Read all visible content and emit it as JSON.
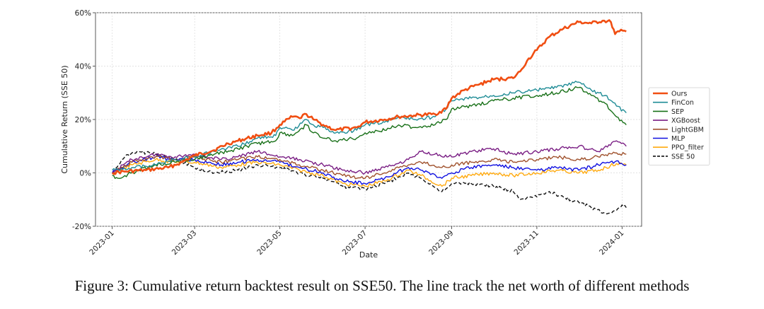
{
  "caption": "Figure 3: Cumulative return backtest result on SSE50. The line track the net worth of different methods",
  "chart_data": {
    "type": "line",
    "title": "",
    "xlabel": "Date",
    "ylabel": "Cumulative Return (SSE 50)",
    "x_range": [
      "2022-12-20",
      "2024-01-15"
    ],
    "ylim": [
      -20,
      60
    ],
    "x_ticks": [
      "2023-01",
      "2023-03",
      "2023-05",
      "2023-07",
      "2023-09",
      "2023-11",
      "2024-01"
    ],
    "x_tick_dates": [
      "2023-01-01",
      "2023-03-01",
      "2023-05-01",
      "2023-07-01",
      "2023-09-01",
      "2023-11-01",
      "2024-01-01"
    ],
    "y_ticks": [
      -20,
      0,
      20,
      40,
      60
    ],
    "y_tick_labels": [
      "-20%",
      "0%",
      "20%",
      "40%",
      "60%"
    ],
    "grid": true,
    "legend_position": "right",
    "series": [
      {
        "name": "Ours",
        "color": "#f04e12",
        "dash": "solid",
        "width": 2.6,
        "points": [
          [
            "2023-01-01",
            0
          ],
          [
            "2023-01-10",
            0.5
          ],
          [
            "2023-01-25",
            1
          ],
          [
            "2023-02-10",
            2
          ],
          [
            "2023-02-20",
            4
          ],
          [
            "2023-03-01",
            6.5
          ],
          [
            "2023-03-15",
            8.5
          ],
          [
            "2023-03-25",
            11
          ],
          [
            "2023-04-01",
            12
          ],
          [
            "2023-04-15",
            14
          ],
          [
            "2023-04-25",
            15
          ],
          [
            "2023-05-01",
            18
          ],
          [
            "2023-05-10",
            21
          ],
          [
            "2023-05-15",
            20.5
          ],
          [
            "2023-05-20",
            22
          ],
          [
            "2023-05-25",
            20
          ],
          [
            "2023-06-01",
            18
          ],
          [
            "2023-06-10",
            16
          ],
          [
            "2023-06-25",
            17
          ],
          [
            "2023-07-01",
            19
          ],
          [
            "2023-07-15",
            20
          ],
          [
            "2023-07-25",
            21
          ],
          [
            "2023-08-05",
            21.5
          ],
          [
            "2023-08-20",
            22
          ],
          [
            "2023-08-28",
            24
          ],
          [
            "2023-09-01",
            28
          ],
          [
            "2023-09-10",
            31
          ],
          [
            "2023-09-20",
            33
          ],
          [
            "2023-10-01",
            35
          ],
          [
            "2023-10-15",
            35.5
          ],
          [
            "2023-10-20",
            38
          ],
          [
            "2023-10-25",
            42
          ],
          [
            "2023-11-01",
            46
          ],
          [
            "2023-11-10",
            51
          ],
          [
            "2023-11-20",
            54
          ],
          [
            "2023-12-01",
            56.5
          ],
          [
            "2023-12-10",
            56
          ],
          [
            "2023-12-18",
            57
          ],
          [
            "2023-12-24",
            56.5
          ],
          [
            "2023-12-27",
            52
          ],
          [
            "2023-12-30",
            53
          ],
          [
            "2024-01-04",
            53
          ]
        ]
      },
      {
        "name": "FinCon",
        "color": "#1f8c96",
        "dash": "solid",
        "width": 1.4,
        "points": [
          [
            "2023-01-01",
            1
          ],
          [
            "2023-01-15",
            2
          ],
          [
            "2023-02-01",
            3
          ],
          [
            "2023-02-15",
            5
          ],
          [
            "2023-03-01",
            6
          ],
          [
            "2023-03-15",
            8
          ],
          [
            "2023-04-01",
            10
          ],
          [
            "2023-04-15",
            13
          ],
          [
            "2023-04-28",
            14
          ],
          [
            "2023-05-01",
            17
          ],
          [
            "2023-05-10",
            16
          ],
          [
            "2023-05-20",
            20
          ],
          [
            "2023-05-25",
            18
          ],
          [
            "2023-06-01",
            17
          ],
          [
            "2023-06-10",
            15
          ],
          [
            "2023-06-25",
            16
          ],
          [
            "2023-07-01",
            18
          ],
          [
            "2023-07-15",
            19
          ],
          [
            "2023-07-25",
            21
          ],
          [
            "2023-08-05",
            20
          ],
          [
            "2023-08-20",
            21
          ],
          [
            "2023-08-28",
            24
          ],
          [
            "2023-09-01",
            27
          ],
          [
            "2023-09-15",
            28
          ],
          [
            "2023-10-01",
            29
          ],
          [
            "2023-10-15",
            30
          ],
          [
            "2023-11-01",
            31
          ],
          [
            "2023-11-15",
            32
          ],
          [
            "2023-12-01",
            34
          ],
          [
            "2023-12-10",
            31
          ],
          [
            "2023-12-20",
            29
          ],
          [
            "2023-12-28",
            25
          ],
          [
            "2024-01-04",
            22.5
          ]
        ]
      },
      {
        "name": "SEP",
        "color": "#187018",
        "dash": "solid",
        "width": 1.4,
        "points": [
          [
            "2023-01-01",
            -1
          ],
          [
            "2023-01-05",
            -2
          ],
          [
            "2023-01-10",
            -1
          ],
          [
            "2023-01-20",
            1
          ],
          [
            "2023-02-01",
            3
          ],
          [
            "2023-02-15",
            4
          ],
          [
            "2023-03-01",
            5
          ],
          [
            "2023-03-15",
            7
          ],
          [
            "2023-04-01",
            9
          ],
          [
            "2023-04-15",
            11
          ],
          [
            "2023-04-28",
            12
          ],
          [
            "2023-05-01",
            15
          ],
          [
            "2023-05-10",
            14
          ],
          [
            "2023-05-20",
            18
          ],
          [
            "2023-05-25",
            15
          ],
          [
            "2023-06-01",
            13
          ],
          [
            "2023-06-10",
            12
          ],
          [
            "2023-06-25",
            13
          ],
          [
            "2023-07-01",
            15
          ],
          [
            "2023-07-15",
            16
          ],
          [
            "2023-07-25",
            18
          ],
          [
            "2023-08-05",
            17
          ],
          [
            "2023-08-20",
            18
          ],
          [
            "2023-08-28",
            20
          ],
          [
            "2023-09-01",
            24
          ],
          [
            "2023-09-15",
            25
          ],
          [
            "2023-10-01",
            27
          ],
          [
            "2023-10-15",
            28
          ],
          [
            "2023-11-01",
            29
          ],
          [
            "2023-11-15",
            30
          ],
          [
            "2023-12-01",
            32
          ],
          [
            "2023-12-10",
            29
          ],
          [
            "2023-12-20",
            26
          ],
          [
            "2023-12-28",
            21
          ],
          [
            "2024-01-04",
            18
          ]
        ]
      },
      {
        "name": "XGBoost",
        "color": "#7a1e84",
        "dash": "solid",
        "width": 1.4,
        "points": [
          [
            "2023-01-01",
            0
          ],
          [
            "2023-01-15",
            5
          ],
          [
            "2023-02-01",
            7
          ],
          [
            "2023-02-15",
            6
          ],
          [
            "2023-03-01",
            7
          ],
          [
            "2023-03-20",
            5
          ],
          [
            "2023-04-01",
            6
          ],
          [
            "2023-04-15",
            8
          ],
          [
            "2023-05-01",
            6
          ],
          [
            "2023-05-15",
            5
          ],
          [
            "2023-06-01",
            3
          ],
          [
            "2023-06-15",
            1
          ],
          [
            "2023-07-01",
            0
          ],
          [
            "2023-07-15",
            2
          ],
          [
            "2023-08-01",
            5
          ],
          [
            "2023-08-10",
            8
          ],
          [
            "2023-08-20",
            7
          ],
          [
            "2023-09-01",
            6
          ],
          [
            "2023-09-15",
            8
          ],
          [
            "2023-10-01",
            9
          ],
          [
            "2023-10-15",
            7
          ],
          [
            "2023-11-01",
            8
          ],
          [
            "2023-11-15",
            9
          ],
          [
            "2023-12-01",
            10
          ],
          [
            "2023-12-15",
            8
          ],
          [
            "2023-12-28",
            12
          ],
          [
            "2024-01-04",
            10
          ]
        ]
      },
      {
        "name": "LightGBM",
        "color": "#a0522d",
        "dash": "solid",
        "width": 1.4,
        "points": [
          [
            "2023-01-01",
            0
          ],
          [
            "2023-01-15",
            4
          ],
          [
            "2023-02-01",
            6
          ],
          [
            "2023-02-15",
            5
          ],
          [
            "2023-03-01",
            6
          ],
          [
            "2023-03-20",
            4
          ],
          [
            "2023-04-01",
            5
          ],
          [
            "2023-04-15",
            6
          ],
          [
            "2023-05-01",
            5
          ],
          [
            "2023-05-15",
            3
          ],
          [
            "2023-06-01",
            1
          ],
          [
            "2023-06-15",
            -1
          ],
          [
            "2023-07-01",
            -2
          ],
          [
            "2023-07-15",
            0
          ],
          [
            "2023-08-01",
            3
          ],
          [
            "2023-08-10",
            4
          ],
          [
            "2023-08-25",
            2
          ],
          [
            "2023-09-01",
            3
          ],
          [
            "2023-09-15",
            4
          ],
          [
            "2023-10-01",
            5
          ],
          [
            "2023-10-15",
            4
          ],
          [
            "2023-11-01",
            5
          ],
          [
            "2023-11-15",
            6
          ],
          [
            "2023-12-01",
            5
          ],
          [
            "2023-12-15",
            6
          ],
          [
            "2023-12-28",
            7.5
          ],
          [
            "2024-01-04",
            7
          ]
        ]
      },
      {
        "name": "MLP",
        "color": "#1010e0",
        "dash": "solid",
        "width": 1.4,
        "points": [
          [
            "2023-01-01",
            0
          ],
          [
            "2023-01-15",
            4
          ],
          [
            "2023-02-01",
            6
          ],
          [
            "2023-02-15",
            5
          ],
          [
            "2023-03-01",
            5
          ],
          [
            "2023-03-20",
            3
          ],
          [
            "2023-04-01",
            4
          ],
          [
            "2023-04-15",
            5
          ],
          [
            "2023-05-01",
            4
          ],
          [
            "2023-05-15",
            2
          ],
          [
            "2023-06-01",
            0
          ],
          [
            "2023-06-15",
            -3
          ],
          [
            "2023-07-01",
            -4
          ],
          [
            "2023-07-15",
            -2
          ],
          [
            "2023-08-01",
            2
          ],
          [
            "2023-08-10",
            1
          ],
          [
            "2023-08-25",
            -2
          ],
          [
            "2023-09-01",
            0
          ],
          [
            "2023-09-15",
            2
          ],
          [
            "2023-10-01",
            3
          ],
          [
            "2023-10-15",
            2
          ],
          [
            "2023-11-01",
            1
          ],
          [
            "2023-11-15",
            2
          ],
          [
            "2023-12-01",
            1
          ],
          [
            "2023-12-15",
            3
          ],
          [
            "2023-12-28",
            4.5
          ],
          [
            "2024-01-04",
            3
          ]
        ]
      },
      {
        "name": "PPO_filter",
        "color": "#ffaa10",
        "dash": "solid",
        "width": 1.4,
        "points": [
          [
            "2023-01-01",
            0
          ],
          [
            "2023-01-15",
            3
          ],
          [
            "2023-02-01",
            5
          ],
          [
            "2023-02-15",
            4
          ],
          [
            "2023-03-01",
            4
          ],
          [
            "2023-03-20",
            2
          ],
          [
            "2023-04-01",
            3
          ],
          [
            "2023-04-15",
            4
          ],
          [
            "2023-05-01",
            3
          ],
          [
            "2023-05-15",
            1
          ],
          [
            "2023-06-01",
            -1
          ],
          [
            "2023-06-15",
            -4
          ],
          [
            "2023-07-01",
            -5
          ],
          [
            "2023-07-15",
            -3
          ],
          [
            "2023-08-01",
            1
          ],
          [
            "2023-08-10",
            -1
          ],
          [
            "2023-08-25",
            -5
          ],
          [
            "2023-09-01",
            -2
          ],
          [
            "2023-09-15",
            -1
          ],
          [
            "2023-10-01",
            0
          ],
          [
            "2023-10-15",
            -1
          ],
          [
            "2023-11-01",
            0
          ],
          [
            "2023-11-15",
            1
          ],
          [
            "2023-12-01",
            0
          ],
          [
            "2023-12-15",
            1
          ],
          [
            "2023-12-28",
            3.5
          ],
          [
            "2024-01-04",
            3
          ]
        ]
      },
      {
        "name": "SSE 50",
        "color": "#111111",
        "dash": "dashed",
        "width": 1.4,
        "points": [
          [
            "2023-01-01",
            0
          ],
          [
            "2023-01-10",
            6
          ],
          [
            "2023-01-20",
            8
          ],
          [
            "2023-02-01",
            7
          ],
          [
            "2023-02-15",
            5
          ],
          [
            "2023-03-01",
            2
          ],
          [
            "2023-03-15",
            0
          ],
          [
            "2023-04-01",
            1
          ],
          [
            "2023-04-15",
            3
          ],
          [
            "2023-05-01",
            2
          ],
          [
            "2023-05-15",
            0
          ],
          [
            "2023-06-01",
            -2
          ],
          [
            "2023-06-15",
            -5
          ],
          [
            "2023-07-01",
            -6
          ],
          [
            "2023-07-15",
            -4
          ],
          [
            "2023-08-01",
            0
          ],
          [
            "2023-08-10",
            -2
          ],
          [
            "2023-08-25",
            -7
          ],
          [
            "2023-09-01",
            -4
          ],
          [
            "2023-09-15",
            -4
          ],
          [
            "2023-10-01",
            -5
          ],
          [
            "2023-10-15",
            -7
          ],
          [
            "2023-10-20",
            -10
          ],
          [
            "2023-11-01",
            -9
          ],
          [
            "2023-11-10",
            -7
          ],
          [
            "2023-11-20",
            -9
          ],
          [
            "2023-12-01",
            -11
          ],
          [
            "2023-12-10",
            -13
          ],
          [
            "2023-12-20",
            -15
          ],
          [
            "2023-12-28",
            -14
          ],
          [
            "2024-01-01",
            -12
          ],
          [
            "2024-01-04",
            -13
          ]
        ]
      }
    ]
  }
}
